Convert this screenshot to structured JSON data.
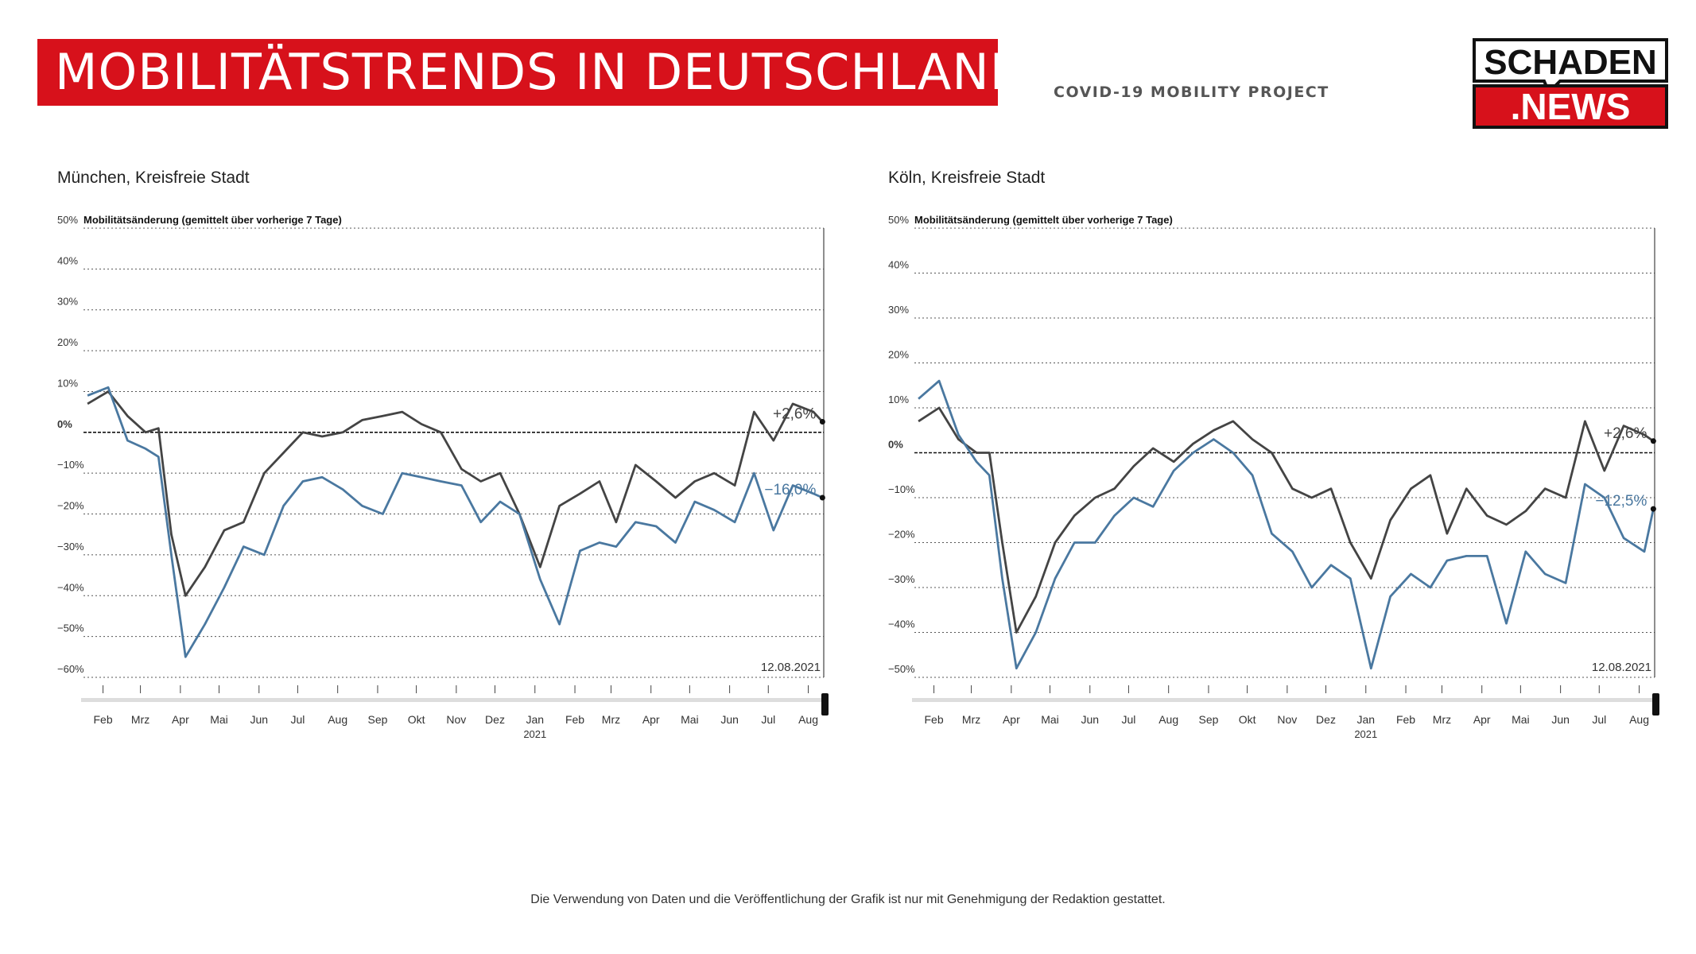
{
  "header": {
    "title": "MOBILITÄTSTRENDS IN DEUTSCHLAND",
    "subtitle": "COVID-19 MOBILITY PROJECT",
    "logo_top": "SCHADEN",
    "logo_bottom": ".NEWS"
  },
  "footer": {
    "note": "Die Verwendung von Daten und die Veröffentlichung der Grafik ist nur mit Genehmigung der Redaktion gestattet."
  },
  "colors": {
    "brand_red": "#d7111b",
    "series_dark": "#444444",
    "series_blue": "#4a78a0"
  },
  "chart_data": [
    {
      "type": "line",
      "title": "München, Kreisfreie Stadt",
      "ylabel": "Mobilitätsänderung (gemittelt über vorherige 7 Tage)",
      "ylim": [
        -60,
        50
      ],
      "yticks": [
        50,
        40,
        30,
        20,
        10,
        0,
        -10,
        -20,
        -30,
        -40,
        -50,
        -60
      ],
      "ytick_labels": [
        "50%",
        "40%",
        "30%",
        "20%",
        "10%",
        "0%",
        "−10%",
        "−20%",
        "−30%",
        "−40%",
        "−50%",
        "−60%"
      ],
      "xticks": [
        "Feb",
        "Mrz",
        "Apr",
        "Mai",
        "Jun",
        "Jul",
        "Aug",
        "Sep",
        "Okt",
        "Nov",
        "Dez",
        "Jan",
        "Feb",
        "Mrz",
        "Apr",
        "Mai",
        "Jun",
        "Jul",
        "Aug"
      ],
      "year_label": "2021",
      "date_label": "12.08.2021",
      "grid": true,
      "x": [
        "2020-01-20",
        "2020-02-05",
        "2020-02-20",
        "2020-03-05",
        "2020-03-15",
        "2020-03-25",
        "2020-04-05",
        "2020-04-20",
        "2020-05-05",
        "2020-05-20",
        "2020-06-05",
        "2020-06-20",
        "2020-07-05",
        "2020-07-20",
        "2020-08-05",
        "2020-08-20",
        "2020-09-05",
        "2020-09-20",
        "2020-10-05",
        "2020-10-20",
        "2020-11-05",
        "2020-11-20",
        "2020-12-05",
        "2020-12-20",
        "2021-01-05",
        "2021-01-20",
        "2021-02-05",
        "2021-02-20",
        "2021-03-05",
        "2021-03-20",
        "2021-04-05",
        "2021-04-20",
        "2021-05-05",
        "2021-05-20",
        "2021-06-05",
        "2021-06-20",
        "2021-07-05",
        "2021-07-20",
        "2021-08-05",
        "2021-08-12"
      ],
      "series": [
        {
          "values": [
            7,
            10,
            4,
            0,
            1,
            -25,
            -40,
            -33,
            -24,
            -22,
            -10,
            -5,
            0,
            -1,
            0,
            3,
            4,
            5,
            2,
            0,
            -9,
            -12,
            -10,
            -20,
            -33,
            -18,
            -15,
            -12,
            -22,
            -8,
            -12,
            -16,
            -12,
            -10,
            -13,
            5,
            -2,
            7,
            5,
            2.6
          ],
          "end_label": "+2,6%"
        },
        {
          "values": [
            9,
            11,
            -2,
            -4,
            -6,
            -30,
            -55,
            -47,
            -38,
            -28,
            -30,
            -18,
            -12,
            -11,
            -14,
            -18,
            -20,
            -10,
            -11,
            -12,
            -13,
            -22,
            -17,
            -20,
            -36,
            -47,
            -29,
            -27,
            -28,
            -22,
            -23,
            -27,
            -17,
            -19,
            -22,
            -10,
            -24,
            -13,
            -15,
            -16.0
          ],
          "end_label": "−16,0%"
        }
      ]
    },
    {
      "type": "line",
      "title": "Köln, Kreisfreie Stadt",
      "ylabel": "Mobilitätsänderung (gemittelt über vorherige 7 Tage)",
      "ylim": [
        -50,
        50
      ],
      "yticks": [
        50,
        40,
        30,
        20,
        10,
        0,
        -10,
        -20,
        -30,
        -40,
        -50
      ],
      "ytick_labels": [
        "50%",
        "40%",
        "30%",
        "20%",
        "10%",
        "0%",
        "−10%",
        "−20%",
        "−30%",
        "−40%",
        "−50%"
      ],
      "xticks": [
        "Feb",
        "Mrz",
        "Apr",
        "Mai",
        "Jun",
        "Jul",
        "Aug",
        "Sep",
        "Okt",
        "Nov",
        "Dez",
        "Jan",
        "Feb",
        "Mrz",
        "Apr",
        "Mai",
        "Jun",
        "Jul",
        "Aug"
      ],
      "year_label": "2021",
      "date_label": "12.08.2021",
      "grid": true,
      "x": [
        "2020-01-20",
        "2020-02-05",
        "2020-02-20",
        "2020-03-05",
        "2020-03-15",
        "2020-03-25",
        "2020-04-05",
        "2020-04-20",
        "2020-05-05",
        "2020-05-20",
        "2020-06-05",
        "2020-06-20",
        "2020-07-05",
        "2020-07-20",
        "2020-08-05",
        "2020-08-20",
        "2020-09-05",
        "2020-09-20",
        "2020-10-05",
        "2020-10-20",
        "2020-11-05",
        "2020-11-20",
        "2020-12-05",
        "2020-12-20",
        "2021-01-05",
        "2021-01-20",
        "2021-02-05",
        "2021-02-20",
        "2021-03-05",
        "2021-03-20",
        "2021-04-05",
        "2021-04-20",
        "2021-05-05",
        "2021-05-20",
        "2021-06-05",
        "2021-06-20",
        "2021-07-05",
        "2021-07-20",
        "2021-08-05",
        "2021-08-12"
      ],
      "series": [
        {
          "values": [
            7,
            10,
            3,
            0,
            0,
            -20,
            -40,
            -32,
            -20,
            -14,
            -10,
            -8,
            -3,
            1,
            -2,
            2,
            5,
            7,
            3,
            0,
            -8,
            -10,
            -8,
            -20,
            -28,
            -15,
            -8,
            -5,
            -18,
            -8,
            -14,
            -16,
            -13,
            -8,
            -10,
            7,
            -4,
            6,
            4,
            2.6
          ],
          "end_label": "+2,6%"
        },
        {
          "values": [
            12,
            16,
            4,
            -2,
            -5,
            -28,
            -48,
            -40,
            -28,
            -20,
            -20,
            -14,
            -10,
            -12,
            -4,
            0,
            3,
            0,
            -5,
            -18,
            -22,
            -30,
            -25,
            -28,
            -48,
            -32,
            -27,
            -30,
            -24,
            -23,
            -23,
            -38,
            -22,
            -27,
            -29,
            -7,
            -10,
            -19,
            -22,
            -12.5
          ],
          "end_label": "−12,5%"
        }
      ]
    }
  ]
}
